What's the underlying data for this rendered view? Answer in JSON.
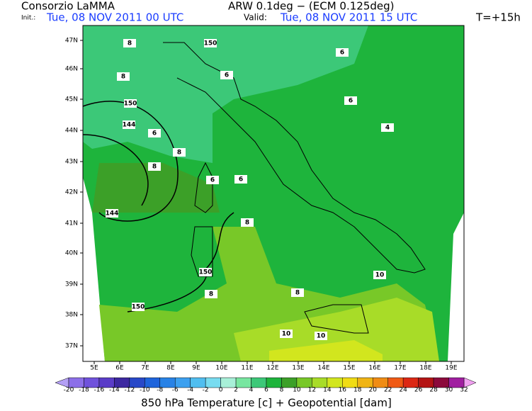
{
  "header": {
    "org": "Consorzio LaMMA",
    "model": "ARW 0.1deg − (ECM 0.125deg)",
    "init_label": "Init.:",
    "init": "Tue, 08 NOV 2011  00 UTC",
    "valid_label": "Valid:",
    "valid": "Tue, 08 NOV 2011  15 UTC",
    "lead": "T=+15h"
  },
  "map": {
    "lat_labels": [
      "47N",
      "46N",
      "45N",
      "44N",
      "43N",
      "42N",
      "41N",
      "40N",
      "39N",
      "38N",
      "37N"
    ],
    "lon_labels": [
      "5E",
      "6E",
      "7E",
      "8E",
      "9E",
      "10E",
      "11E",
      "12E",
      "13E",
      "14E",
      "15E",
      "16E",
      "17E",
      "18E",
      "19E"
    ],
    "contour_labels": [
      "150",
      "144",
      "150",
      "144",
      "150",
      "150",
      "6",
      "6",
      "6",
      "6",
      "6",
      "6",
      "8",
      "8",
      "8",
      "8",
      "8",
      "8",
      "8",
      "4",
      "10",
      "10",
      "10"
    ]
  },
  "colorbar": {
    "labels": [
      -20,
      -18,
      -16,
      -14,
      -12,
      -10,
      -8,
      -6,
      -4,
      -2,
      0,
      2,
      4,
      6,
      8,
      10,
      12,
      14,
      16,
      18,
      20,
      22,
      24,
      26,
      28,
      30,
      32
    ],
    "under_color": "#b4a0f5",
    "colors": [
      "#8c6fe8",
      "#7052dc",
      "#5a3cc8",
      "#3c28a0",
      "#2848c8",
      "#1e64dc",
      "#2882e6",
      "#3ca0f0",
      "#50bef0",
      "#78dcf0",
      "#a8f0d8",
      "#78e6a0",
      "#3cc878",
      "#1eb43c",
      "#3ca028",
      "#78c828",
      "#a8dc28",
      "#d2e61e",
      "#f0dc14",
      "#f0b414",
      "#f08c14",
      "#f05a14",
      "#dc2814",
      "#b41414",
      "#8c0a3c",
      "#a01ea0"
    ],
    "over_color": "#f0a0f0"
  },
  "footer": "850 hPa Temperature [c] + Geopotential [dam]"
}
